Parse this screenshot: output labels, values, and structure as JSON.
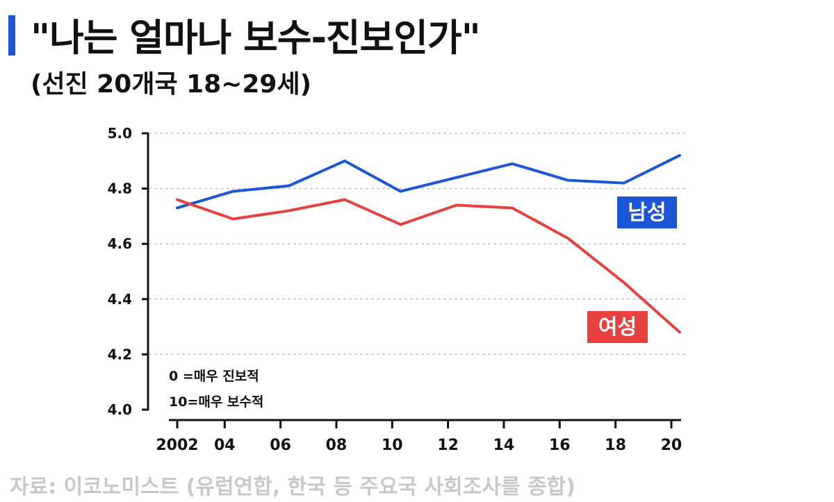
{
  "title": "\"나는 얼마나 보수-진보인가\"",
  "subtitle": "(선진 20개국 18~29세)",
  "source": "자료: 이코노미스트 (유럽연합, 한국 등 주요국 사회조사를 종합)",
  "colors": {
    "men": "#1a56d6",
    "women": "#e8403f",
    "grid": "#c4c4c4",
    "axis": "#111111"
  },
  "chart_data": {
    "type": "line",
    "x": [
      "2002",
      "04",
      "06",
      "08",
      "10",
      "12",
      "14",
      "16",
      "18",
      "20"
    ],
    "x_values": [
      2002,
      2003.7,
      2005.7,
      2007.7,
      2009.7,
      2011.7,
      2013.7,
      2015.7,
      2017.7,
      2019.7
    ],
    "ylim": [
      4.0,
      5.0
    ],
    "yticks": [
      "4.0",
      "4.2",
      "4.4",
      "4.6",
      "4.8",
      "5.0"
    ],
    "ytick_values": [
      4.0,
      4.2,
      4.4,
      4.6,
      4.8,
      5.0
    ],
    "grid": true,
    "series": [
      {
        "name": "남성",
        "x": [
          2002,
          2004,
          2006,
          2008,
          2010,
          2012,
          2014,
          2016,
          2018,
          2020
        ],
        "values": [
          4.73,
          4.79,
          4.81,
          4.9,
          4.79,
          4.84,
          4.89,
          4.83,
          4.82,
          4.92
        ]
      },
      {
        "name": "여성",
        "x": [
          2002,
          2004,
          2006,
          2008,
          2010,
          2012,
          2014,
          2016,
          2018,
          2020
        ],
        "values": [
          4.76,
          4.69,
          4.72,
          4.76,
          4.67,
          4.74,
          4.73,
          4.62,
          4.46,
          4.28
        ]
      }
    ],
    "annotations": [
      "0 =매우 진보적",
      "10=매우 보수적"
    ]
  }
}
